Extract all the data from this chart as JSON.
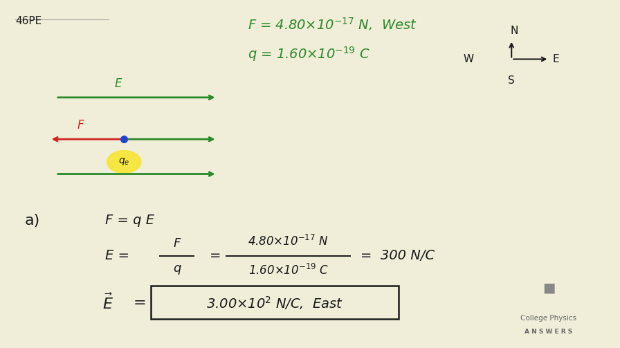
{
  "bg_color": "#f0edd8",
  "title_label": "46PE",
  "green_color": "#2a8a2a",
  "red_color": "#cc2222",
  "black_color": "#1a1a1a",
  "blue_dot_color": "#2244cc",
  "yellow_ellipse_color": "#f5e642",
  "given_line1": "F = 4.80×10^{-17} N,  West",
  "given_line2": "q = 1.60×10^{-19} C",
  "part_a_label": "a)",
  "logo_text1": "College Physics",
  "logo_text2": "ANSWERS"
}
